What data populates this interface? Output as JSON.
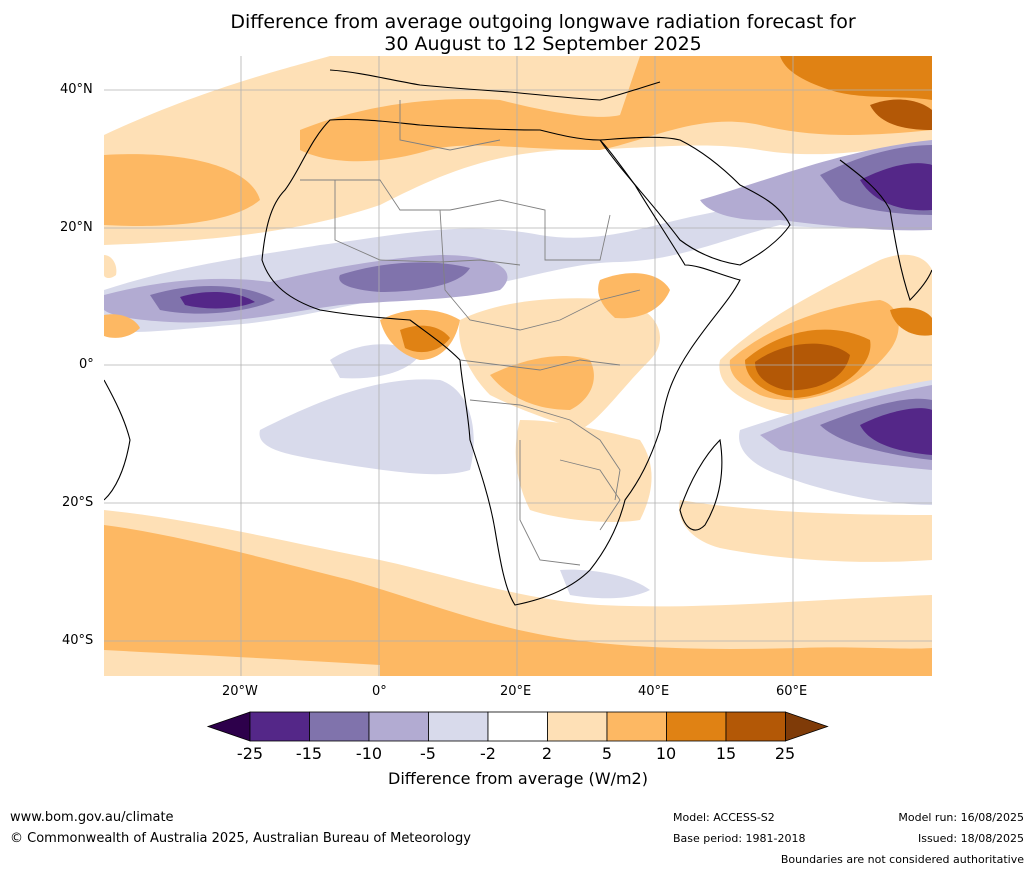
{
  "title_line1": "Difference from average outgoing longwave radiation forecast for",
  "title_line2": "30 August to 12 September 2025",
  "lat_labels": [
    "40°N",
    "20°N",
    "0°",
    "20°S",
    "40°S"
  ],
  "lon_labels": [
    "20°W",
    "0°",
    "20°E",
    "40°E",
    "60°E"
  ],
  "colorbar": {
    "title": "Difference from average (W/m2)",
    "ticks": [
      "-25",
      "-15",
      "-10",
      "-5",
      "-2",
      "2",
      "5",
      "10",
      "15",
      "25"
    ],
    "colors": [
      "#2d004b",
      "#542788",
      "#8073ac",
      "#b2abd2",
      "#d8daeb",
      "#ffffff",
      "#fee0b6",
      "#fdb863",
      "#e08214",
      "#b35806",
      "#7f3b08"
    ]
  },
  "footer": {
    "website": "www.bom.gov.au/climate",
    "copyright": "© Commonwealth of Australia 2025, Australian Bureau of Meteorology",
    "model": "Model: ACCESS-S2",
    "base_period": "Base period: 1981-2018",
    "model_run": "Model run: 16/08/2025",
    "issued": "Issued: 18/08/2025",
    "disclaimer": "Boundaries are not considered authoritative"
  }
}
